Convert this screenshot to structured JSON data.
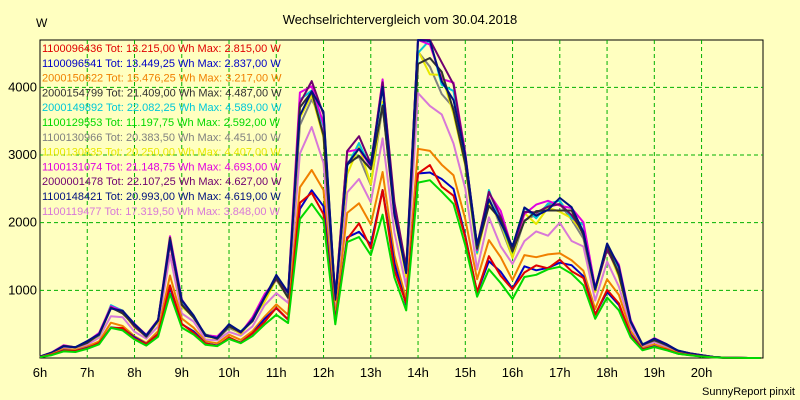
{
  "chart_data": {
    "type": "line",
    "title": "Wechselrichtervergleich vom 30.04.2018",
    "ylabel": "W",
    "xlabel": "",
    "credit": "SunnyReport pinxit",
    "ylim": [
      0,
      4700
    ],
    "xlim": [
      6,
      21.3
    ],
    "grid": true,
    "legend_placement": "top-left",
    "x_ticks": [
      {
        "value": 6,
        "label": "6h"
      },
      {
        "value": 7,
        "label": "7h"
      },
      {
        "value": 8,
        "label": "8h"
      },
      {
        "value": 9,
        "label": "9h"
      },
      {
        "value": 10,
        "label": "10h"
      },
      {
        "value": 11,
        "label": "11h"
      },
      {
        "value": 12,
        "label": "12h"
      },
      {
        "value": 13,
        "label": "13h"
      },
      {
        "value": 14,
        "label": "14h"
      },
      {
        "value": 15,
        "label": "15h"
      },
      {
        "value": 16,
        "label": "16h"
      },
      {
        "value": 17,
        "label": "17h"
      },
      {
        "value": 18,
        "label": "18h"
      },
      {
        "value": 19,
        "label": "19h"
      },
      {
        "value": 20,
        "label": "20h"
      }
    ],
    "y_ticks": [
      {
        "value": 1000,
        "label": "1000"
      },
      {
        "value": 2000,
        "label": "2000"
      },
      {
        "value": 3000,
        "label": "3000"
      },
      {
        "value": 4000,
        "label": "4000"
      }
    ],
    "x": [
      6.0,
      6.25,
      6.5,
      6.75,
      7.0,
      7.25,
      7.5,
      7.75,
      8.0,
      8.25,
      8.5,
      8.75,
      9.0,
      9.25,
      9.5,
      9.75,
      10.0,
      10.25,
      10.5,
      10.75,
      11.0,
      11.25,
      11.5,
      11.75,
      12.0,
      12.25,
      12.5,
      12.75,
      13.0,
      13.25,
      13.5,
      13.75,
      14.0,
      14.25,
      14.5,
      14.75,
      15.0,
      15.25,
      15.5,
      15.75,
      16.0,
      16.25,
      16.5,
      16.75,
      17.0,
      17.25,
      17.5,
      17.75,
      18.0,
      18.25,
      18.5,
      18.75,
      19.0,
      19.25,
      19.5,
      19.75,
      20.0,
      20.25,
      20.5,
      20.75,
      21.0,
      21.25
    ],
    "base_profile": [
      20,
      80,
      180,
      160,
      240,
      350,
      760,
      700,
      480,
      330,
      580,
      1750,
      820,
      620,
      340,
      300,
      480,
      380,
      580,
      900,
      1180,
      950,
      3700,
      4000,
      3500,
      850,
      2950,
      3150,
      2750,
      3900,
      2200,
      1280,
      4600,
      4550,
      4200,
      3900,
      2900,
      1620,
      2400,
      2050,
      1600,
      2150,
      2150,
      2250,
      2300,
      2150,
      1900,
      1050,
      1650,
      1300,
      550,
      200,
      280,
      200,
      110,
      70,
      40,
      15,
      5,
      2,
      0,
      0
    ],
    "series": [
      {
        "name": "1100096436",
        "label": "1100096436 Tot: 13.215,00 Wh Max: 2.815,00 W",
        "color": "#e00000",
        "total_wh": 13215.0,
        "max_w": 2815.0
      },
      {
        "name": "1100096541",
        "label": "1100096541 Tot: 13.449,25 Wh Max: 2.837,00 W",
        "color": "#0000c8",
        "total_wh": 13449.25,
        "max_w": 2837.0
      },
      {
        "name": "2000150622",
        "label": "2000150622 Tot: 15.476,25 Wh Max: 3.217,00 W",
        "color": "#f08000",
        "total_wh": 15476.25,
        "max_w": 3217.0
      },
      {
        "name": "2000154799",
        "label": "2000154799 Tot: 21.409,00 Wh Max: 4.487,00 W",
        "color": "#303030",
        "total_wh": 21409.0,
        "max_w": 4487.0
      },
      {
        "name": "2000149892",
        "label": "2000149892 Tot: 22.082,25 Wh Max: 4.589,00 W",
        "color": "#00c8d8",
        "total_wh": 22082.25,
        "max_w": 4589.0
      },
      {
        "name": "1100129553",
        "label": "1100129553 Tot: 11.197,75 Wh Max: 2.592,00 W",
        "color": "#00d800",
        "total_wh": 11197.75,
        "max_w": 2592.0
      },
      {
        "name": "1100130966",
        "label": "1100130966 Tot: 20.383,50 Wh Max: 4.451,00 W",
        "color": "#808080",
        "total_wh": 20383.5,
        "max_w": 4451.0
      },
      {
        "name": "1100130835",
        "label": "1100130835 Tot: 20.250,00 Wh Max: 4.407,00 W",
        "color": "#e8e800",
        "total_wh": 20250.0,
        "max_w": 4407.0
      },
      {
        "name": "1100131074",
        "label": "1100131074 Tot: 21.148,75 Wh Max: 4.693,00 W",
        "color": "#e000e0",
        "total_wh": 21148.75,
        "max_w": 4693.0
      },
      {
        "name": "2000001478",
        "label": "2000001478 Tot: 22.107,25 Wh Max: 4.627,00 W",
        "color": "#700070",
        "total_wh": 22107.25,
        "max_w": 4627.0
      },
      {
        "name": "1100148421",
        "label": "1100148421 Tot: 20.993,00 Wh Max: 4.619,00 W",
        "color": "#001080",
        "total_wh": 20993.0,
        "max_w": 4619.0
      },
      {
        "name": "1100119477",
        "label": "1100119477 Tot: 17.319,50 Wh Max: 3.848,00 W",
        "color": "#d878d8",
        "total_wh": 17319.5,
        "max_w": 3848.0
      }
    ]
  }
}
